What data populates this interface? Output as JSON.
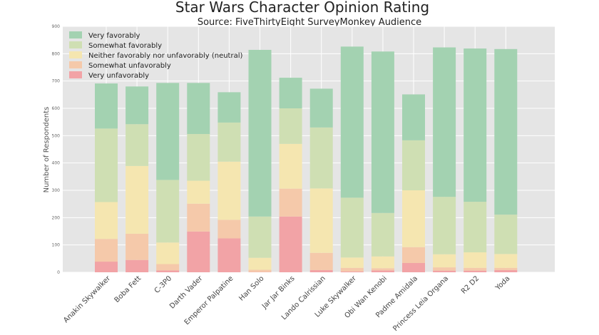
{
  "chart_data": {
    "type": "bar",
    "stacked": true,
    "title": "Star Wars Character Opinion Rating",
    "subtitle": "Source: FiveThirtyEight SurveyMonkey Audience",
    "xlabel": "",
    "ylabel": "Number of Respondents",
    "ylim": [
      0,
      900
    ],
    "yticks": [
      0,
      100,
      200,
      300,
      400,
      500,
      600,
      700,
      800,
      900
    ],
    "grid": true,
    "legend_position": "top-left",
    "categories": [
      "Anakin Skywalker",
      "Boba Fett",
      "C-3P0",
      "Darth Vader",
      "Emperor Palpatine",
      "Han Solo",
      "Jar Jar Binks",
      "Lando Calrissian",
      "Luke Skywalker",
      "Obi Wan Kenobi",
      "Padme Amidala",
      "Princess Leia Organa",
      "R2 D2",
      "Yoda"
    ],
    "series": [
      {
        "name": "Very unfavorably",
        "color": "#f2a3a6",
        "values": [
          39,
          45,
          7,
          149,
          124,
          1,
          204,
          8,
          3,
          7,
          34,
          6,
          6,
          8
        ]
      },
      {
        "name": "Somewhat unfavorably",
        "color": "#f5c9aa",
        "values": [
          83,
          96,
          23,
          102,
          68,
          8,
          102,
          63,
          13,
          8,
          58,
          12,
          10,
          8
        ]
      },
      {
        "name": "Neither favorably nor unfavorably (neutral)",
        "color": "#f5e6b0",
        "values": [
          135,
          248,
          79,
          84,
          213,
          44,
          164,
          236,
          38,
          43,
          208,
          48,
          57,
          51
        ]
      },
      {
        "name": "Somewhat favorably",
        "color": "#cfdfb3",
        "values": [
          269,
          153,
          229,
          171,
          143,
          151,
          130,
          223,
          219,
          159,
          183,
          210,
          185,
          144
        ]
      },
      {
        "name": "Very favorably",
        "color": "#a3d2b1",
        "values": [
          165,
          138,
          355,
          187,
          111,
          610,
          112,
          142,
          553,
          591,
          168,
          547,
          561,
          606
        ]
      }
    ]
  }
}
